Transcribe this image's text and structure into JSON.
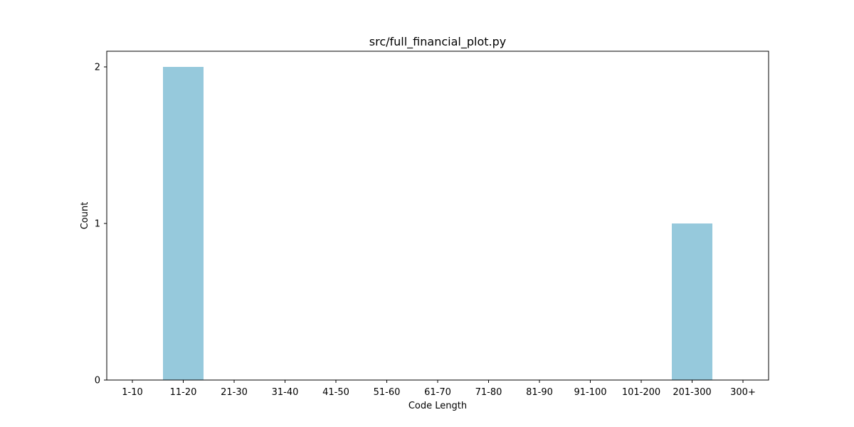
{
  "chart_data": {
    "type": "bar",
    "title": "src/full_financial_plot.py",
    "xlabel": "Code Length",
    "ylabel": "Count",
    "categories": [
      "1-10",
      "11-20",
      "21-30",
      "31-40",
      "41-50",
      "51-60",
      "61-70",
      "71-80",
      "81-90",
      "91-100",
      "101-200",
      "201-300",
      "300+"
    ],
    "values": [
      0,
      2,
      0,
      0,
      0,
      0,
      0,
      0,
      0,
      0,
      0,
      1,
      0
    ],
    "yticks": [
      0,
      1,
      2
    ],
    "ylim": [
      0,
      2.1
    ],
    "bar_color": "#96c9dc",
    "grid": false,
    "legend": false
  }
}
